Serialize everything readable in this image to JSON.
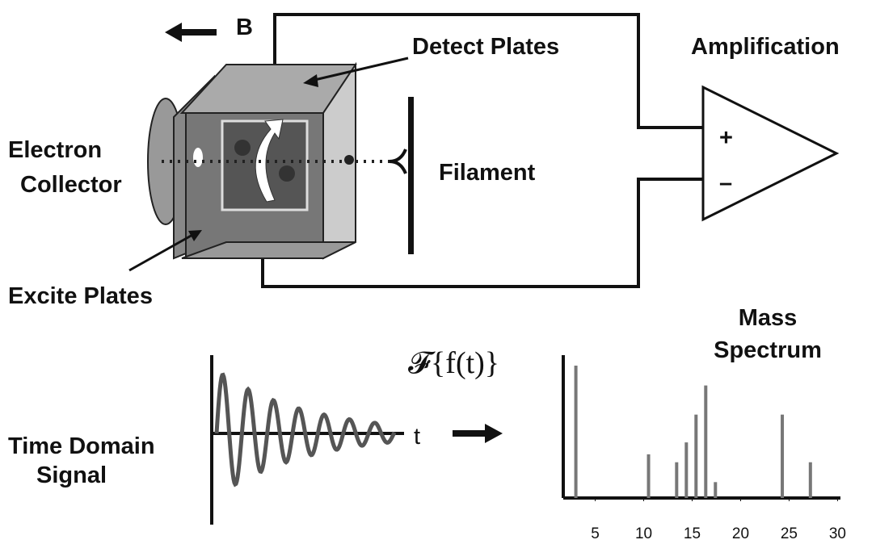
{
  "labels": {
    "b_field": "B",
    "detect_plates": "Detect Plates",
    "amplification": "Amplification",
    "electron_collector": [
      "Electron",
      "Collector"
    ],
    "filament": "Filament",
    "excite_plates": "Excite Plates",
    "plus": "+",
    "minus": "–",
    "time_domain_signal": [
      "Time Domain",
      "Signal"
    ],
    "t_axis": "t",
    "fourier": "𝓕{f(t)}",
    "mass_spectrum": [
      "Mass",
      "Spectrum"
    ]
  },
  "spectrum": {
    "xlim": [
      1.7,
      30.3
    ],
    "xticks": [
      5,
      10,
      15,
      20,
      25,
      30
    ],
    "ylim": [
      0,
      100
    ],
    "peaks_x": [
      3.0,
      10.5,
      13.4,
      14.4,
      15.4,
      16.4,
      17.4,
      24.3,
      27.2
    ],
    "peaks_height": [
      100,
      33,
      27,
      42,
      63,
      85,
      12,
      63,
      27
    ]
  }
}
